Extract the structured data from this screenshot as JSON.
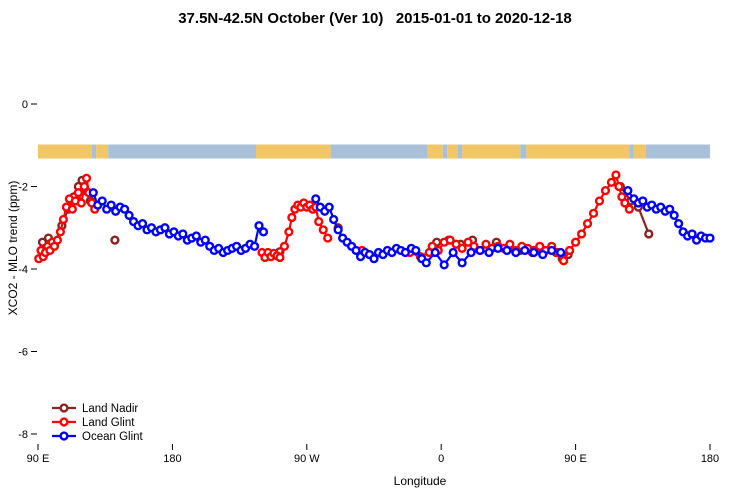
{
  "title": "37.5N-42.5N October (Ver 10)   2015-01-01 to 2020-12-18",
  "chart_data": {
    "type": "scatter",
    "title": "37.5N-42.5N October (Ver 10)   2015-01-01 to 2020-12-18",
    "xlabel": "Longitude",
    "ylabel": "XCO2 - MLO trend (ppm)",
    "x_range": [
      90,
      540
    ],
    "y_range": [
      -8.6,
      0.9
    ],
    "grid": false,
    "x_ticks": [
      {
        "t": 90,
        "label": "90 E"
      },
      {
        "t": 180,
        "label": "180"
      },
      {
        "t": 270,
        "label": "90 W"
      },
      {
        "t": 360,
        "label": "0"
      },
      {
        "t": 450,
        "label": "90 E"
      },
      {
        "t": 540,
        "label": "180"
      }
    ],
    "y_ticks": [
      {
        "v": 0,
        "label": "0"
      },
      {
        "v": -2,
        "label": "-2"
      },
      {
        "v": -4,
        "label": "-4"
      },
      {
        "v": -6,
        "label": "-6"
      },
      {
        "v": -8,
        "label": "-8"
      }
    ],
    "map_strip": {
      "y_value": -1.0,
      "land_color": "#F2C566",
      "ocean_color": "#A9C0D8",
      "segments": [
        [
          90,
          126,
          "land"
        ],
        [
          126,
          129,
          "ocean"
        ],
        [
          129,
          137,
          "land"
        ],
        [
          137,
          236,
          "ocean"
        ],
        [
          236,
          286,
          "land"
        ],
        [
          286,
          351,
          "ocean"
        ],
        [
          351,
          361,
          "land"
        ],
        [
          361,
          364,
          "ocean"
        ],
        [
          364,
          371,
          "land"
        ],
        [
          371,
          374,
          "ocean"
        ],
        [
          374,
          413,
          "land"
        ],
        [
          413,
          417,
          "ocean"
        ],
        [
          417,
          486,
          "land"
        ],
        [
          486,
          489,
          "ocean"
        ],
        [
          489,
          497,
          "land"
        ],
        [
          497,
          540,
          "ocean"
        ]
      ]
    },
    "legend": {
      "position": "bottom-left",
      "entries": [
        "Land Nadir",
        "Land Glint",
        "Ocean Glint"
      ]
    },
    "series": [
      {
        "name": "Land Nadir",
        "color": "#8B2323",
        "points": [
          [
            93,
            -3.35
          ],
          [
            97,
            -3.25
          ],
          [
            101,
            -3.4
          ],
          [
            106,
            -2.95
          ],
          [
            110,
            -2.55
          ],
          [
            114,
            -2.25
          ],
          [
            117,
            -2.0
          ],
          [
            119.5,
            -1.85
          ],
          [
            122,
            -2.1
          ],
          [
            125,
            -2.35
          ],
          [
            141.5,
            -3.3
          ],
          [
            246,
            -3.68
          ],
          [
            252,
            -3.58
          ],
          [
            273,
            -2.5
          ],
          [
            291,
            -3.0
          ],
          [
            357,
            -3.35
          ],
          [
            365,
            -3.3
          ],
          [
            373,
            -3.4
          ],
          [
            381,
            -3.3
          ],
          [
            397,
            -3.35
          ],
          [
            405,
            -3.5
          ],
          [
            413,
            -3.55
          ],
          [
            421,
            -3.6
          ],
          [
            429,
            -3.55
          ],
          [
            437,
            -3.6
          ],
          [
            441,
            -3.75
          ],
          [
            445,
            -3.65
          ],
          [
            480,
            -2.0
          ],
          [
            487,
            -2.35
          ],
          [
            492,
            -2.5
          ],
          [
            499,
            -3.15
          ]
        ]
      },
      {
        "name": "Land Glint",
        "color": "#FF0000",
        "points": [
          [
            90.5,
            -3.75
          ],
          [
            92,
            -3.55
          ],
          [
            93.5,
            -3.7
          ],
          [
            95,
            -3.6
          ],
          [
            96.5,
            -3.45
          ],
          [
            98,
            -3.55
          ],
          [
            99.5,
            -3.35
          ],
          [
            101,
            -3.45
          ],
          [
            103,
            -3.3
          ],
          [
            105,
            -3.1
          ],
          [
            107,
            -2.8
          ],
          [
            109,
            -2.5
          ],
          [
            111,
            -2.3
          ],
          [
            113,
            -2.55
          ],
          [
            115,
            -2.35
          ],
          [
            117,
            -2.15
          ],
          [
            119,
            -2.4
          ],
          [
            121,
            -2.0
          ],
          [
            122.5,
            -1.8
          ],
          [
            124,
            -2.15
          ],
          [
            126,
            -2.4
          ],
          [
            128,
            -2.55
          ],
          [
            240,
            -3.6
          ],
          [
            242,
            -3.72
          ],
          [
            244,
            -3.6
          ],
          [
            246,
            -3.7
          ],
          [
            248,
            -3.62
          ],
          [
            250,
            -3.68
          ],
          [
            252,
            -3.72
          ],
          [
            255,
            -3.45
          ],
          [
            258,
            -3.1
          ],
          [
            260,
            -2.75
          ],
          [
            262,
            -2.55
          ],
          [
            264,
            -2.45
          ],
          [
            266,
            -2.5
          ],
          [
            268,
            -2.4
          ],
          [
            270,
            -2.5
          ],
          [
            272,
            -2.45
          ],
          [
            274,
            -2.55
          ],
          [
            276,
            -2.5
          ],
          [
            278,
            -2.85
          ],
          [
            281,
            -3.05
          ],
          [
            284,
            -3.25
          ],
          [
            307,
            -3.55
          ],
          [
            339,
            -3.6
          ],
          [
            346,
            -3.7
          ],
          [
            352,
            -3.6
          ],
          [
            354,
            -3.45
          ],
          [
            358,
            -3.55
          ],
          [
            362,
            -3.35
          ],
          [
            366,
            -3.3
          ],
          [
            370,
            -3.4
          ],
          [
            374,
            -3.5
          ],
          [
            378,
            -3.35
          ],
          [
            382,
            -3.45
          ],
          [
            386,
            -3.55
          ],
          [
            390,
            -3.4
          ],
          [
            394,
            -3.5
          ],
          [
            398,
            -3.45
          ],
          [
            402,
            -3.5
          ],
          [
            406,
            -3.4
          ],
          [
            410,
            -3.55
          ],
          [
            414,
            -3.45
          ],
          [
            418,
            -3.5
          ],
          [
            422,
            -3.55
          ],
          [
            426,
            -3.45
          ],
          [
            430,
            -3.55
          ],
          [
            434,
            -3.45
          ],
          [
            438,
            -3.6
          ],
          [
            442,
            -3.8
          ],
          [
            446,
            -3.55
          ],
          [
            450,
            -3.35
          ],
          [
            454,
            -3.15
          ],
          [
            458,
            -2.9
          ],
          [
            462,
            -2.65
          ],
          [
            466,
            -2.35
          ],
          [
            470,
            -2.1
          ],
          [
            474,
            -1.9
          ],
          [
            477,
            -1.72
          ],
          [
            479,
            -2.0
          ],
          [
            481,
            -2.25
          ],
          [
            483,
            -2.4
          ],
          [
            486,
            -2.55
          ]
        ]
      },
      {
        "name": "Ocean Glint",
        "color": "#0000FF",
        "points": [
          [
            127,
            -2.15
          ],
          [
            130,
            -2.45
          ],
          [
            133,
            -2.35
          ],
          [
            136,
            -2.55
          ],
          [
            139,
            -2.45
          ],
          [
            142,
            -2.6
          ],
          [
            145,
            -2.5
          ],
          [
            148,
            -2.55
          ],
          [
            151,
            -2.7
          ],
          [
            154,
            -2.85
          ],
          [
            157,
            -2.95
          ],
          [
            160,
            -2.9
          ],
          [
            163,
            -3.05
          ],
          [
            166,
            -3.0
          ],
          [
            169,
            -3.1
          ],
          [
            172,
            -3.05
          ],
          [
            175,
            -3.0
          ],
          [
            178,
            -3.15
          ],
          [
            181,
            -3.1
          ],
          [
            184,
            -3.2
          ],
          [
            187,
            -3.15
          ],
          [
            190,
            -3.3
          ],
          [
            193,
            -3.25
          ],
          [
            196,
            -3.2
          ],
          [
            199,
            -3.35
          ],
          [
            202,
            -3.3
          ],
          [
            205,
            -3.45
          ],
          [
            208,
            -3.55
          ],
          [
            211,
            -3.5
          ],
          [
            214,
            -3.6
          ],
          [
            217,
            -3.55
          ],
          [
            220,
            -3.5
          ],
          [
            223,
            -3.45
          ],
          [
            226,
            -3.55
          ],
          [
            229,
            -3.5
          ],
          [
            232,
            -3.4
          ],
          [
            235,
            -3.45
          ],
          [
            238,
            -2.95
          ],
          [
            241,
            -3.1
          ],
          [
            276,
            -2.3
          ],
          [
            279,
            -2.5
          ],
          [
            282,
            -2.6
          ],
          [
            285,
            -2.5
          ],
          [
            288,
            -2.8
          ],
          [
            291,
            -3.05
          ],
          [
            294,
            -3.25
          ],
          [
            297,
            -3.35
          ],
          [
            300,
            -3.45
          ],
          [
            303,
            -3.55
          ],
          [
            306,
            -3.7
          ],
          [
            309,
            -3.6
          ],
          [
            312,
            -3.65
          ],
          [
            315,
            -3.75
          ],
          [
            318,
            -3.6
          ],
          [
            321,
            -3.65
          ],
          [
            324,
            -3.55
          ],
          [
            327,
            -3.6
          ],
          [
            330,
            -3.5
          ],
          [
            333,
            -3.55
          ],
          [
            336,
            -3.6
          ],
          [
            340,
            -3.5
          ],
          [
            343,
            -3.55
          ],
          [
            347,
            -3.75
          ],
          [
            350,
            -3.85
          ],
          [
            356,
            -3.6
          ],
          [
            362,
            -3.9
          ],
          [
            368,
            -3.6
          ],
          [
            374,
            -3.85
          ],
          [
            380,
            -3.6
          ],
          [
            386,
            -3.55
          ],
          [
            392,
            -3.6
          ],
          [
            398,
            -3.5
          ],
          [
            404,
            -3.55
          ],
          [
            410,
            -3.6
          ],
          [
            416,
            -3.55
          ],
          [
            422,
            -3.6
          ],
          [
            428,
            -3.65
          ],
          [
            434,
            -3.55
          ],
          [
            440,
            -3.6
          ],
          [
            485,
            -2.1
          ],
          [
            489,
            -2.3
          ],
          [
            492,
            -2.4
          ],
          [
            495,
            -2.35
          ],
          [
            498,
            -2.5
          ],
          [
            501,
            -2.45
          ],
          [
            504,
            -2.55
          ],
          [
            507,
            -2.5
          ],
          [
            510,
            -2.6
          ],
          [
            513,
            -2.55
          ],
          [
            516,
            -2.7
          ],
          [
            519,
            -2.9
          ],
          [
            522,
            -3.1
          ],
          [
            525,
            -3.2
          ],
          [
            528,
            -3.15
          ],
          [
            531,
            -3.3
          ],
          [
            534,
            -3.2
          ],
          [
            537,
            -3.25
          ],
          [
            540,
            -3.25
          ]
        ]
      }
    ]
  }
}
